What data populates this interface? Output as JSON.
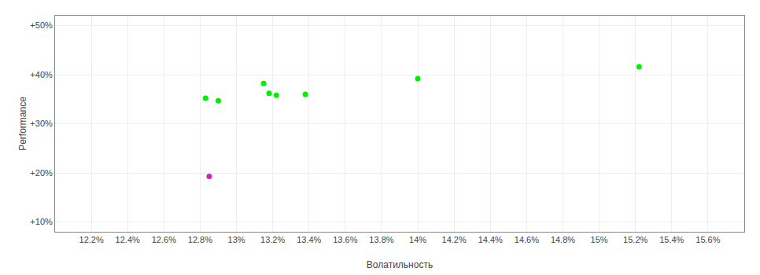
{
  "chart_data": {
    "type": "scatter",
    "xlabel": "Волатильность",
    "ylabel": "Performance",
    "xlim": [
      0.12,
      0.158
    ],
    "ylim": [
      0.08,
      0.52
    ],
    "xticks": [
      {
        "value": 0.122,
        "label": "12.2%"
      },
      {
        "value": 0.124,
        "label": "12.4%"
      },
      {
        "value": 0.126,
        "label": "12.6%"
      },
      {
        "value": 0.128,
        "label": "12.8%"
      },
      {
        "value": 0.13,
        "label": "13%"
      },
      {
        "value": 0.132,
        "label": "13.2%"
      },
      {
        "value": 0.134,
        "label": "13.4%"
      },
      {
        "value": 0.136,
        "label": "13.6%"
      },
      {
        "value": 0.138,
        "label": "13.8%"
      },
      {
        "value": 0.14,
        "label": "14%"
      },
      {
        "value": 0.142,
        "label": "14.2%"
      },
      {
        "value": 0.144,
        "label": "14.4%"
      },
      {
        "value": 0.146,
        "label": "14.6%"
      },
      {
        "value": 0.148,
        "label": "14.8%"
      },
      {
        "value": 0.15,
        "label": "15%"
      },
      {
        "value": 0.152,
        "label": "15.2%"
      },
      {
        "value": 0.154,
        "label": "15.4%"
      },
      {
        "value": 0.156,
        "label": "15.6%"
      }
    ],
    "yticks": [
      {
        "value": 0.1,
        "label": "+10%"
      },
      {
        "value": 0.2,
        "label": "+20%"
      },
      {
        "value": 0.3,
        "label": "+30%"
      },
      {
        "value": 0.4,
        "label": "+40%"
      },
      {
        "value": 0.5,
        "label": "+50%"
      }
    ],
    "grid": true,
    "series": [
      {
        "color": "#00ee00",
        "x": [
          0.1283,
          0.129,
          0.1315,
          0.1318,
          0.1322,
          0.1338,
          0.14,
          0.1522
        ],
        "values": [
          0.352,
          0.347,
          0.382,
          0.362,
          0.358,
          0.36,
          0.392,
          0.416
        ]
      },
      {
        "color": "#cc22cc",
        "x": [
          0.1285
        ],
        "values": [
          0.193
        ]
      }
    ]
  }
}
